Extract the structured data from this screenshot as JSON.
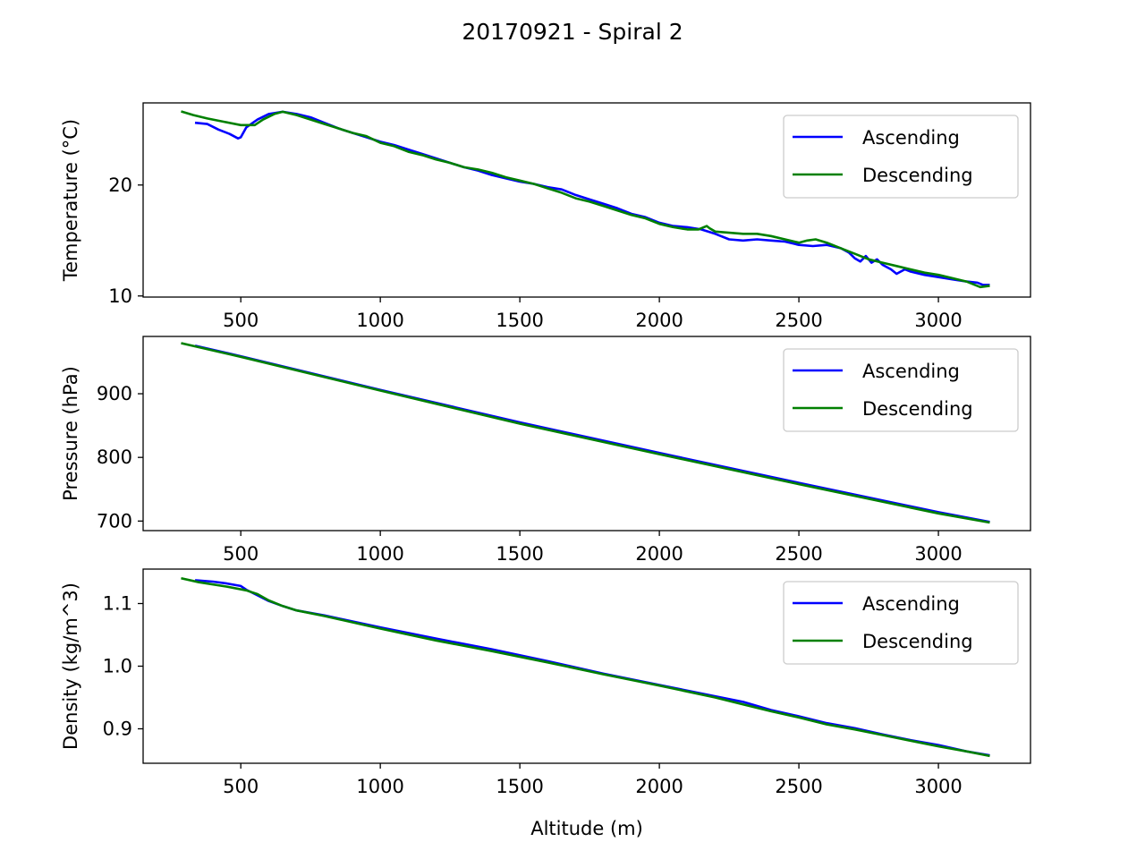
{
  "figure": {
    "title": "20170921 - Spiral 2"
  },
  "chart_data": [
    {
      "type": "line",
      "ylabel": "Temperature (°C)",
      "xlabel": "",
      "xlim": [
        150,
        3330
      ],
      "ylim": [
        9.9,
        27.4
      ],
      "xticks": [
        500,
        1000,
        1500,
        2000,
        2500,
        3000
      ],
      "xtick_labels": [
        "500",
        "1000",
        "1500",
        "2000",
        "2500",
        "3000"
      ],
      "yticks": [
        10,
        20
      ],
      "ytick_labels": [
        "10",
        "20"
      ],
      "legend": {
        "position": "upper right",
        "entries": [
          "Ascending",
          "Descending"
        ]
      },
      "series": [
        {
          "name": "Ascending",
          "color": "#0000ff",
          "points": [
            [
              340,
              25.6
            ],
            [
              380,
              25.5
            ],
            [
              420,
              25.0
            ],
            [
              460,
              24.6
            ],
            [
              490,
              24.2
            ],
            [
              500,
              24.3
            ],
            [
              520,
              25.2
            ],
            [
              560,
              25.9
            ],
            [
              600,
              26.4
            ],
            [
              650,
              26.6
            ],
            [
              700,
              26.4
            ],
            [
              750,
              26.1
            ],
            [
              800,
              25.6
            ],
            [
              850,
              25.1
            ],
            [
              900,
              24.7
            ],
            [
              950,
              24.3
            ],
            [
              1000,
              23.9
            ],
            [
              1050,
              23.6
            ],
            [
              1100,
              23.2
            ],
            [
              1150,
              22.8
            ],
            [
              1200,
              22.4
            ],
            [
              1250,
              22.0
            ],
            [
              1300,
              21.6
            ],
            [
              1350,
              21.3
            ],
            [
              1400,
              20.9
            ],
            [
              1450,
              20.6
            ],
            [
              1500,
              20.3
            ],
            [
              1550,
              20.1
            ],
            [
              1600,
              19.8
            ],
            [
              1650,
              19.6
            ],
            [
              1700,
              19.1
            ],
            [
              1750,
              18.7
            ],
            [
              1800,
              18.3
            ],
            [
              1850,
              17.9
            ],
            [
              1900,
              17.4
            ],
            [
              1950,
              17.1
            ],
            [
              2000,
              16.6
            ],
            [
              2050,
              16.3
            ],
            [
              2100,
              16.2
            ],
            [
              2150,
              16.0
            ],
            [
              2200,
              15.6
            ],
            [
              2250,
              15.1
            ],
            [
              2300,
              15.0
            ],
            [
              2350,
              15.1
            ],
            [
              2400,
              15.0
            ],
            [
              2450,
              14.9
            ],
            [
              2500,
              14.6
            ],
            [
              2550,
              14.5
            ],
            [
              2600,
              14.6
            ],
            [
              2650,
              14.3
            ],
            [
              2680,
              13.9
            ],
            [
              2700,
              13.4
            ],
            [
              2720,
              13.1
            ],
            [
              2740,
              13.6
            ],
            [
              2760,
              13.0
            ],
            [
              2780,
              13.3
            ],
            [
              2800,
              12.8
            ],
            [
              2830,
              12.4
            ],
            [
              2850,
              12.0
            ],
            [
              2880,
              12.4
            ],
            [
              2900,
              12.2
            ],
            [
              2950,
              11.9
            ],
            [
              3000,
              11.7
            ],
            [
              3050,
              11.5
            ],
            [
              3100,
              11.3
            ],
            [
              3140,
              11.2
            ],
            [
              3160,
              11.0
            ],
            [
              3180,
              11.0
            ]
          ]
        },
        {
          "name": "Descending",
          "color": "#008000",
          "points": [
            [
              290,
              26.6
            ],
            [
              330,
              26.3
            ],
            [
              380,
              26.0
            ],
            [
              440,
              25.7
            ],
            [
              500,
              25.4
            ],
            [
              550,
              25.4
            ],
            [
              580,
              25.9
            ],
            [
              620,
              26.4
            ],
            [
              650,
              26.6
            ],
            [
              700,
              26.3
            ],
            [
              750,
              25.9
            ],
            [
              800,
              25.5
            ],
            [
              850,
              25.1
            ],
            [
              900,
              24.7
            ],
            [
              950,
              24.4
            ],
            [
              1000,
              23.8
            ],
            [
              1050,
              23.5
            ],
            [
              1100,
              23.0
            ],
            [
              1150,
              22.7
            ],
            [
              1200,
              22.3
            ],
            [
              1250,
              22.0
            ],
            [
              1300,
              21.6
            ],
            [
              1350,
              21.4
            ],
            [
              1400,
              21.1
            ],
            [
              1450,
              20.7
            ],
            [
              1500,
              20.4
            ],
            [
              1550,
              20.1
            ],
            [
              1600,
              19.7
            ],
            [
              1650,
              19.3
            ],
            [
              1700,
              18.8
            ],
            [
              1750,
              18.5
            ],
            [
              1800,
              18.1
            ],
            [
              1850,
              17.7
            ],
            [
              1900,
              17.3
            ],
            [
              1950,
              17.0
            ],
            [
              2000,
              16.5
            ],
            [
              2050,
              16.2
            ],
            [
              2100,
              16.0
            ],
            [
              2140,
              16.0
            ],
            [
              2170,
              16.3
            ],
            [
              2180,
              16.1
            ],
            [
              2200,
              15.8
            ],
            [
              2250,
              15.7
            ],
            [
              2300,
              15.6
            ],
            [
              2350,
              15.6
            ],
            [
              2400,
              15.4
            ],
            [
              2450,
              15.1
            ],
            [
              2500,
              14.8
            ],
            [
              2530,
              15.0
            ],
            [
              2560,
              15.1
            ],
            [
              2600,
              14.8
            ],
            [
              2650,
              14.3
            ],
            [
              2700,
              13.8
            ],
            [
              2750,
              13.3
            ],
            [
              2800,
              13.0
            ],
            [
              2850,
              12.7
            ],
            [
              2900,
              12.4
            ],
            [
              2950,
              12.1
            ],
            [
              3000,
              11.9
            ],
            [
              3050,
              11.6
            ],
            [
              3100,
              11.3
            ],
            [
              3150,
              10.8
            ],
            [
              3180,
              10.9
            ]
          ]
        }
      ]
    },
    {
      "type": "line",
      "ylabel": "Pressure (hPa)",
      "xlabel": "",
      "xlim": [
        150,
        3330
      ],
      "ylim": [
        685,
        990
      ],
      "xticks": [
        500,
        1000,
        1500,
        2000,
        2500,
        3000
      ],
      "xtick_labels": [
        "500",
        "1000",
        "1500",
        "2000",
        "2500",
        "3000"
      ],
      "yticks": [
        700,
        800,
        900
      ],
      "ytick_labels": [
        "700",
        "800",
        "900"
      ],
      "legend": {
        "position": "upper right",
        "entries": [
          "Ascending",
          "Descending"
        ]
      },
      "series": [
        {
          "name": "Ascending",
          "color": "#0000ff",
          "points": [
            [
              340,
              975
            ],
            [
              500,
              959
            ],
            [
              1000,
              906
            ],
            [
              1500,
              855
            ],
            [
              2000,
              807
            ],
            [
              2500,
              760
            ],
            [
              3000,
              714
            ],
            [
              3180,
              699
            ]
          ]
        },
        {
          "name": "Descending",
          "color": "#008000",
          "points": [
            [
              290,
              979
            ],
            [
              500,
              958
            ],
            [
              1000,
              905
            ],
            [
              1500,
              853
            ],
            [
              2000,
              805
            ],
            [
              2500,
              758
            ],
            [
              3000,
              712
            ],
            [
              3180,
              698
            ]
          ]
        }
      ]
    },
    {
      "type": "line",
      "ylabel": "Density (kg/m^3)",
      "xlabel": "Altitude (m)",
      "xlim": [
        150,
        3330
      ],
      "ylim": [
        0.845,
        1.155
      ],
      "xticks": [
        500,
        1000,
        1500,
        2000,
        2500,
        3000
      ],
      "xtick_labels": [
        "500",
        "1000",
        "1500",
        "2000",
        "2500",
        "3000"
      ],
      "yticks": [
        0.9,
        1.0,
        1.1
      ],
      "ytick_labels": [
        "0.9",
        "1.0",
        "1.1"
      ],
      "legend": {
        "position": "upper right",
        "entries": [
          "Ascending",
          "Descending"
        ]
      },
      "series": [
        {
          "name": "Ascending",
          "color": "#0000ff",
          "points": [
            [
              340,
              1.137
            ],
            [
              400,
              1.135
            ],
            [
              450,
              1.132
            ],
            [
              500,
              1.128
            ],
            [
              520,
              1.122
            ],
            [
              560,
              1.113
            ],
            [
              600,
              1.104
            ],
            [
              650,
              1.096
            ],
            [
              700,
              1.089
            ],
            [
              800,
              1.081
            ],
            [
              1000,
              1.062
            ],
            [
              1200,
              1.044
            ],
            [
              1400,
              1.027
            ],
            [
              1600,
              1.008
            ],
            [
              1800,
              0.988
            ],
            [
              2000,
              0.97
            ],
            [
              2200,
              0.952
            ],
            [
              2300,
              0.943
            ],
            [
              2400,
              0.93
            ],
            [
              2500,
              0.92
            ],
            [
              2600,
              0.909
            ],
            [
              2700,
              0.901
            ],
            [
              2800,
              0.891
            ],
            [
              2900,
              0.882
            ],
            [
              3000,
              0.874
            ],
            [
              3100,
              0.864
            ],
            [
              3180,
              0.858
            ]
          ]
        },
        {
          "name": "Descending",
          "color": "#008000",
          "points": [
            [
              290,
              1.14
            ],
            [
              350,
              1.134
            ],
            [
              450,
              1.127
            ],
            [
              520,
              1.121
            ],
            [
              560,
              1.115
            ],
            [
              600,
              1.105
            ],
            [
              650,
              1.096
            ],
            [
              700,
              1.089
            ],
            [
              800,
              1.08
            ],
            [
              1000,
              1.06
            ],
            [
              1200,
              1.041
            ],
            [
              1400,
              1.024
            ],
            [
              1600,
              1.006
            ],
            [
              1800,
              0.987
            ],
            [
              2000,
              0.969
            ],
            [
              2200,
              0.95
            ],
            [
              2300,
              0.939
            ],
            [
              2400,
              0.928
            ],
            [
              2500,
              0.918
            ],
            [
              2600,
              0.907
            ],
            [
              2700,
              0.899
            ],
            [
              2800,
              0.89
            ],
            [
              2900,
              0.881
            ],
            [
              3000,
              0.872
            ],
            [
              3100,
              0.864
            ],
            [
              3180,
              0.857
            ]
          ]
        }
      ]
    }
  ]
}
